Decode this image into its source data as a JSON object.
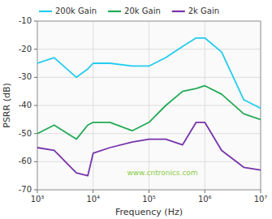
{
  "chart_data": {
    "type": "line",
    "xlabel": "Frequency (Hz)",
    "ylabel": "PSRR (dB)",
    "log": "x",
    "grid": true,
    "legend": "upper left",
    "xlim": [
      1000,
      10000000
    ],
    "ylim": [
      -70,
      -10
    ],
    "xticks": [
      {
        "value": 1000,
        "label": "10³"
      },
      {
        "value": 10000,
        "label": "10⁴"
      },
      {
        "value": 100000,
        "label": "10⁵"
      },
      {
        "value": 1000000,
        "label": "10⁶"
      },
      {
        "value": 10000000,
        "label": "10⁷"
      }
    ],
    "yticks": [
      -70,
      -60,
      -50,
      -40,
      -30,
      -20,
      -10
    ],
    "x": [
      1000,
      2000,
      5000,
      8000,
      10000,
      20000,
      50000,
      100000,
      200000,
      400000,
      700000,
      1000000,
      2000000,
      5000000,
      10000000
    ],
    "series": [
      {
        "name": "200k Gain",
        "color": "#22ccee",
        "values": [
          -25,
          -23,
          -30,
          -27,
          -25,
          -25,
          -26,
          -26,
          -23,
          -19,
          -16,
          -16,
          -21,
          -38,
          -41
        ]
      },
      {
        "name": "20k Gain",
        "color": "#22aa55",
        "values": [
          -50,
          -47,
          -52,
          -47,
          -46,
          -46,
          -49,
          -46,
          -40,
          -35,
          -34,
          -33,
          -36,
          -43,
          -45
        ]
      },
      {
        "name": "2k Gain",
        "color": "#7733aa",
        "values": [
          -55,
          -56,
          -64,
          -65,
          -57,
          -55,
          -53,
          -52,
          -52,
          -54,
          -46,
          -46,
          -56,
          -62,
          -63
        ]
      }
    ],
    "annotations": [
      {
        "text": "www.cntronics.com",
        "color": "#88cc44"
      }
    ]
  }
}
